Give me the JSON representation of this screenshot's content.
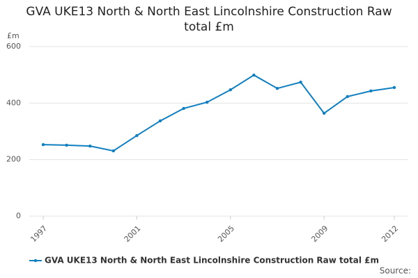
{
  "chart_data": {
    "type": "line",
    "title": "GVA UKE13 North & North East Lincolnshire Construction Raw total £m",
    "y_axis_label": "£m",
    "source": "Source:",
    "x": [
      1997,
      1998,
      1999,
      2000,
      2001,
      2002,
      2003,
      2004,
      2005,
      2006,
      2007,
      2008,
      2009,
      2010,
      2011,
      2012
    ],
    "series": [
      {
        "name": "GVA UKE13 North & North East Lincolnshire Construction Raw total £m",
        "color": "#0e7fc0",
        "values": [
          253,
          251,
          248,
          231,
          285,
          337,
          381,
          403,
          447,
          499,
          452,
          474,
          364,
          423,
          443,
          455
        ]
      }
    ],
    "xlim": [
      1997,
      2012
    ],
    "xticks": [
      1997,
      2001,
      2005,
      2009,
      2012
    ],
    "ylim": [
      0,
      600
    ],
    "yticks": [
      0,
      200,
      400,
      600
    ],
    "grid": true
  }
}
